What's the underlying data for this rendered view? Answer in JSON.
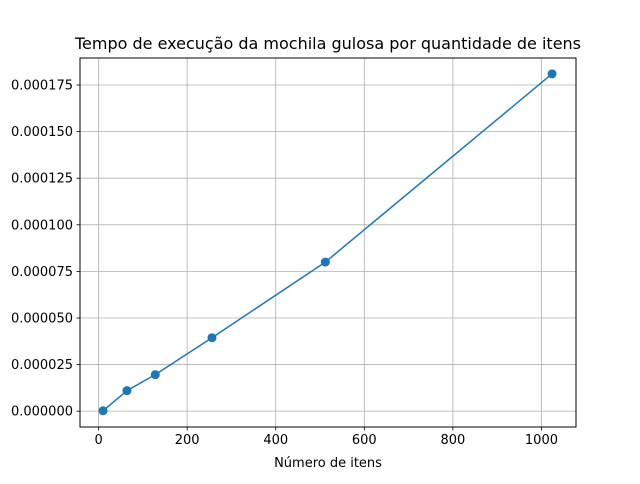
{
  "chart_data": {
    "type": "line",
    "title": "Tempo de execução da mochila gulosa por quantidade de itens",
    "xlabel": "Número de itens",
    "ylabel": "",
    "x": [
      10,
      64,
      128,
      256,
      512,
      1024
    ],
    "series": [
      {
        "values": [
          2e-07,
          1.1e-05,
          1.96e-05,
          3.94e-05,
          8e-05,
          0.000181
        ],
        "color": "#1f77b4",
        "marker": "circle"
      }
    ],
    "xlim": [
      -42,
      1078
    ],
    "ylim": [
      -8.5e-06,
      0.0001895
    ],
    "xticks": [
      0,
      200,
      400,
      600,
      800,
      1000
    ],
    "xtick_labels": [
      "0",
      "200",
      "400",
      "600",
      "800",
      "1000"
    ],
    "yticks": [
      0,
      2.5e-05,
      5e-05,
      7.5e-05,
      0.0001,
      0.000125,
      0.00015,
      0.000175
    ],
    "ytick_labels": [
      "0.000000",
      "0.000025",
      "0.000050",
      "0.000075",
      "0.000100",
      "0.000125",
      "0.000150",
      "0.000175"
    ],
    "grid": true,
    "legend": "none"
  }
}
